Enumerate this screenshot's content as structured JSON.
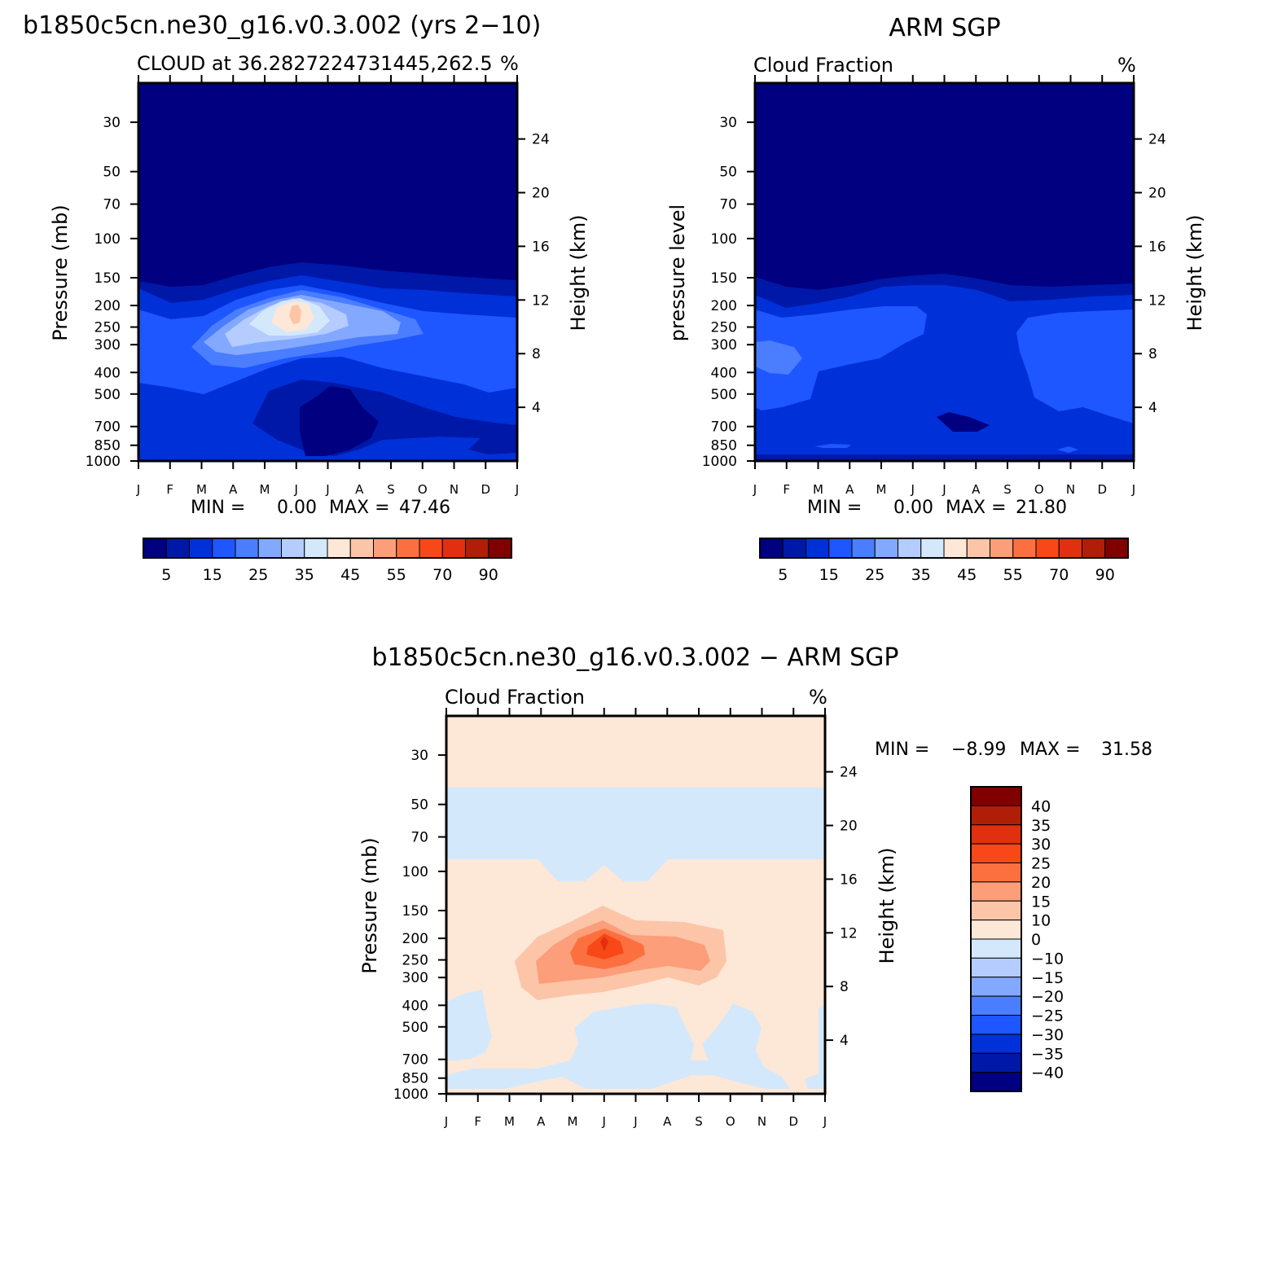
{
  "chart_data": [
    {
      "type": "contour",
      "title": "b1850c5cn.ne30_g16.v0.3.002 (yrs 2−10)",
      "subtitle_left": "CLOUD at 36.2827224731445,262.5",
      "units": "%",
      "ylabel": "Pressure (mb)",
      "y2label": "Height (km)",
      "x_ticks": [
        "J",
        "F",
        "M",
        "A",
        "M",
        "J",
        "J",
        "A",
        "S",
        "O",
        "N",
        "D",
        "J"
      ],
      "y_ticks": [
        30,
        50,
        70,
        100,
        150,
        200,
        250,
        300,
        400,
        500,
        700,
        850,
        1000
      ],
      "y2_ticks": [
        24,
        20,
        16,
        12,
        8,
        4
      ],
      "ylim": [
        1000,
        20
      ],
      "min_label": "MIN =",
      "min_value": "0.00",
      "max_label": "MAX =",
      "max_value": "47.46",
      "min": 0.0,
      "max": 47.46,
      "colorbar_labels": [
        "5",
        "15",
        "25",
        "35",
        "45",
        "55",
        "70",
        "90"
      ],
      "peak": {
        "month": "J",
        "pressure": 250,
        "value": 47.46
      }
    },
    {
      "type": "contour",
      "title": "ARM SGP",
      "subtitle_left": "Cloud Fraction",
      "units": "%",
      "ylabel": "pressure level",
      "y2label": "Height (km)",
      "x_ticks": [
        "J",
        "F",
        "M",
        "A",
        "M",
        "J",
        "J",
        "A",
        "S",
        "O",
        "N",
        "D",
        "J"
      ],
      "y_ticks": [
        30,
        50,
        70,
        100,
        150,
        200,
        250,
        300,
        400,
        500,
        700,
        850,
        1000
      ],
      "y2_ticks": [
        24,
        20,
        16,
        12,
        8,
        4
      ],
      "ylim": [
        1000,
        20
      ],
      "min_label": "MIN =",
      "min_value": "0.00",
      "max_label": "MAX =",
      "max_value": "21.80",
      "min": 0.0,
      "max": 21.8,
      "colorbar_labels": [
        "5",
        "15",
        "25",
        "35",
        "45",
        "55",
        "70",
        "90"
      ]
    },
    {
      "type": "contour",
      "title": "b1850c5cn.ne30_g16.v0.3.002 − ARM SGP",
      "subtitle_left": "Cloud Fraction",
      "units": "%",
      "ylabel": "Pressure (mb)",
      "y2label": "Height (km)",
      "x_ticks": [
        "J",
        "F",
        "M",
        "A",
        "M",
        "J",
        "J",
        "A",
        "S",
        "O",
        "N",
        "D",
        "J"
      ],
      "y_ticks": [
        30,
        50,
        70,
        100,
        150,
        200,
        250,
        300,
        400,
        500,
        700,
        850,
        1000
      ],
      "y2_ticks": [
        24,
        20,
        16,
        12,
        8,
        4
      ],
      "ylim": [
        1000,
        20
      ],
      "min_label": "MIN =",
      "min_value": "−8.99",
      "max_label": "MAX =",
      "max_value": "31.58",
      "min": -8.99,
      "max": 31.58,
      "colorbar_labels": [
        "40",
        "35",
        "30",
        "25",
        "20",
        "15",
        "10",
        "0",
        "−10",
        "−15",
        "−20",
        "−25",
        "−30",
        "−35",
        "−40"
      ],
      "peak": {
        "month": "J",
        "pressure": 230,
        "value": 31.58
      }
    }
  ],
  "colors": {
    "seq": [
      "#000080",
      "#0018a8",
      "#0030d8",
      "#1e56ff",
      "#4a7dff",
      "#83a8ff",
      "#b4ccff",
      "#d4e8fc",
      "#fde7d6",
      "#fcc5a8",
      "#fc9e7a",
      "#fc7040",
      "#f84818",
      "#e03010",
      "#b01e08",
      "#800000"
    ],
    "diff": [
      "#800000",
      "#b01e08",
      "#e03010",
      "#f84818",
      "#fc7040",
      "#fc9e7a",
      "#fcc5a8",
      "#fde7d6",
      "#d4e8fc",
      "#b4ccff",
      "#83a8ff",
      "#4a7dff",
      "#1e56ff",
      "#0030d8",
      "#0018a8",
      "#000080"
    ]
  }
}
